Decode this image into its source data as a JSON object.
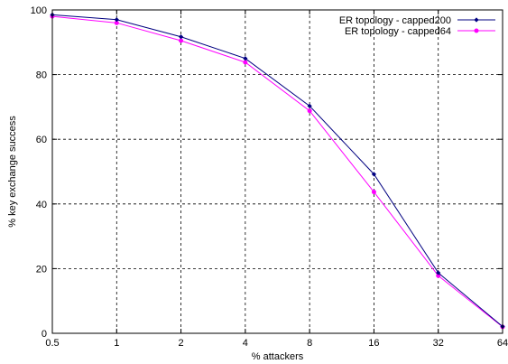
{
  "chart_data": {
    "type": "line",
    "xlabel": "% attackers",
    "ylabel": "% key exchange success",
    "x_scale": "log2",
    "xticks": [
      "0.5",
      "1",
      "2",
      "4",
      "8",
      "16",
      "32",
      "64"
    ],
    "xtick_values": [
      0.5,
      1,
      2,
      4,
      8,
      16,
      32,
      64
    ],
    "yticks": [
      0,
      20,
      40,
      60,
      80,
      100
    ],
    "ylim": [
      0,
      100
    ],
    "xlim": [
      0.5,
      64
    ],
    "grid": true,
    "legend_position": "top-right",
    "series": [
      {
        "name": "ER topology - capped200",
        "color": "#000080",
        "marker": "diamond",
        "x": [
          0.5,
          1,
          2,
          4,
          8,
          16,
          32,
          64
        ],
        "y": [
          98.5,
          97,
          91.7,
          85,
          70.3,
          49.2,
          18.7,
          2.1
        ]
      },
      {
        "name": "ER topology - capped64",
        "color": "#ff00ff",
        "marker": "circle",
        "x": [
          0.5,
          1,
          2,
          4,
          8,
          16,
          32,
          64
        ],
        "y": [
          98,
          96,
          90.5,
          83.8,
          68.8,
          43.7,
          17.8,
          2
        ]
      }
    ]
  }
}
